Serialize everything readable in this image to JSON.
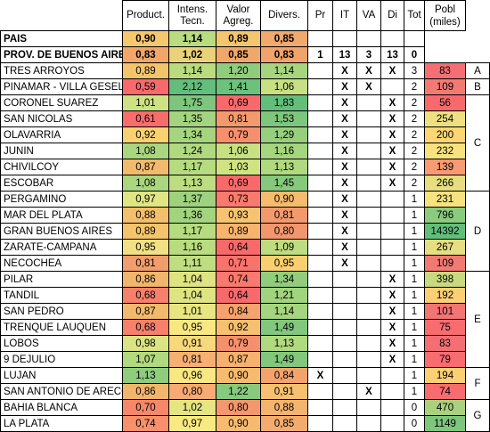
{
  "headers": {
    "productividad": "Product.",
    "intensidad": "Intens. Tecn.",
    "valor": "Valor Agreg.",
    "diversificacion": "Divers.",
    "pr": "Pr",
    "it": "IT",
    "va": "VA",
    "di": "Di",
    "tot": "Tot",
    "poblacion": "Pobl (miles)"
  },
  "summary": [
    {
      "name": "PAIS",
      "p": "0,90",
      "it": "1,14",
      "va": "0,89",
      "d": "0,85",
      "cp": "",
      "cit": "",
      "cva": "",
      "cdi": "",
      "tot": "",
      "bg": [
        "#f5c86e",
        "#b9dc80",
        "#f3c56c",
        "#f1a96c"
      ]
    },
    {
      "name": "PROV. DE BUENOS AIRES",
      "p": "0,83",
      "it": "1,02",
      "va": "0,85",
      "d": "0,83",
      "cp": "1",
      "cit": "13",
      "cva": "3",
      "cdi": "13",
      "tot": "0",
      "bg": [
        "#f2a66a",
        "#ead27a",
        "#f0a86a",
        "#f0a36a"
      ]
    }
  ],
  "rows": [
    {
      "name": "TRES ARROYOS",
      "p": "0,89",
      "it": "1,14",
      "va": "1,20",
      "d": "1,14",
      "pr": "",
      "itx": "X",
      "vax": "X",
      "dix": "X",
      "tot": "3",
      "pob": "83",
      "grp": "A",
      "bg": [
        "#f4c46c",
        "#b9dc80",
        "#8fcc7e",
        "#a6d57f"
      ],
      "pbg": "#f36f73"
    },
    {
      "name": "PINAMAR - VILLA GESELL",
      "p": "0,59",
      "it": "2,12",
      "va": "1,41",
      "d": "1,06",
      "pr": "",
      "itx": "X",
      "vax": "X",
      "dix": "",
      "tot": "2",
      "pob": "109",
      "grp": "B",
      "bg": [
        "#f8696b",
        "#63be7b",
        "#6cc17c",
        "#c6e082"
      ],
      "pbg": "#f37a74"
    },
    {
      "name": "CORONEL SUAREZ",
      "p": "1,01",
      "it": "1,75",
      "va": "0,69",
      "d": "1,83",
      "pr": "",
      "itx": "X",
      "vax": "",
      "dix": "X",
      "tot": "2",
      "pob": "56",
      "grp": "",
      "bg": [
        "#cde283",
        "#7ec67d",
        "#f8696b",
        "#63be7b"
      ],
      "pbg": "#f8696b"
    },
    {
      "name": "SAN NICOLAS",
      "p": "0,61",
      "it": "1,35",
      "va": "0,81",
      "d": "1,53",
      "pr": "",
      "itx": "X",
      "vax": "",
      "dix": "X",
      "tot": "2",
      "pob": "254",
      "grp": "",
      "bg": [
        "#f86d6c",
        "#a4d47f",
        "#f29a6d",
        "#7ec67d"
      ],
      "pbg": "#eee081"
    },
    {
      "name": "OLAVARRIA",
      "p": "0,92",
      "it": "1,34",
      "va": "0,79",
      "d": "1,29",
      "pr": "",
      "itx": "X",
      "vax": "",
      "dix": "X",
      "tot": "2",
      "pob": "200",
      "grp": "C",
      "bg": [
        "#f8d171",
        "#a6d57f",
        "#f4906e",
        "#98cf7e"
      ],
      "pbg": "#fbd673"
    },
    {
      "name": "JUNIN",
      "p": "1,08",
      "it": "1,24",
      "va": "1,06",
      "d": "1,16",
      "pr": "",
      "itx": "X",
      "vax": "",
      "dix": "X",
      "tot": "2",
      "pob": "232",
      "grp": "",
      "bg": [
        "#a9d67f",
        "#b1d980",
        "#c6e082",
        "#a6d57f"
      ],
      "pbg": "#f8e27f"
    },
    {
      "name": "CHIVILCOY",
      "p": "0,87",
      "it": "1,17",
      "va": "1,03",
      "d": "1,13",
      "pr": "",
      "itx": "X",
      "vax": "",
      "dix": "X",
      "tot": "2",
      "pob": "139",
      "grp": "",
      "bg": [
        "#f2ba6c",
        "#b6db80",
        "#d0e383",
        "#b0d980"
      ],
      "pbg": "#f89a73"
    },
    {
      "name": "ESCOBAR",
      "p": "1,08",
      "it": "1,13",
      "va": "0,69",
      "d": "1,45",
      "pr": "",
      "itx": "X",
      "vax": "",
      "dix": "X",
      "tot": "2",
      "pob": "266",
      "grp": "",
      "bg": [
        "#a9d67f",
        "#bcdd81",
        "#f8696b",
        "#86c97d"
      ],
      "pbg": "#e6de81"
    },
    {
      "name": "PERGAMINO",
      "p": "0,97",
      "it": "1,37",
      "va": "0,73",
      "d": "0,90",
      "pr": "",
      "itx": "X",
      "vax": "",
      "dix": "",
      "tot": "1",
      "pob": "231",
      "grp": "",
      "bg": [
        "#e1e583",
        "#9fd27f",
        "#f8796d",
        "#f6bb6f"
      ],
      "pbg": "#f8e27f"
    },
    {
      "name": "MAR DEL PLATA",
      "p": "0,88",
      "it": "1,36",
      "va": "0,93",
      "d": "0,81",
      "pr": "",
      "itx": "X",
      "vax": "",
      "dix": "",
      "tot": "1",
      "pob": "796",
      "grp": "",
      "bg": [
        "#f3bf6c",
        "#a2d37f",
        "#f6c470",
        "#f29a6d"
      ],
      "pbg": "#8bcb7e"
    },
    {
      "name": "GRAN BUENOS AIRES",
      "p": "0,89",
      "it": "1,17",
      "va": "0,89",
      "d": "0,80",
      "pr": "",
      "itx": "X",
      "vax": "",
      "dix": "",
      "tot": "1",
      "pob": "14392",
      "grp": "D",
      "bg": [
        "#f4c46c",
        "#b6db80",
        "#f6b46f",
        "#f2976d"
      ],
      "pbg": "#63be7b"
    },
    {
      "name": "ZARATE-CAMPANA",
      "p": "0,95",
      "it": "1,16",
      "va": "0,64",
      "d": "1,09",
      "pr": "",
      "itx": "X",
      "vax": "",
      "dix": "",
      "tot": "1",
      "pob": "267",
      "grp": "",
      "bg": [
        "#f2e084",
        "#b9dc80",
        "#f8696b",
        "#bedd81"
      ],
      "pbg": "#e6de81"
    },
    {
      "name": "NECOCHEA",
      "p": "0,81",
      "it": "1,11",
      "va": "0,71",
      "d": "0,95",
      "pr": "",
      "itx": "X",
      "vax": "",
      "dix": "",
      "tot": "1",
      "pob": "109",
      "grp": "",
      "bg": [
        "#f29e6c",
        "#c0de81",
        "#f8736c",
        "#f8d071"
      ],
      "pbg": "#f37a74"
    },
    {
      "name": "PILAR",
      "p": "0,86",
      "it": "1,04",
      "va": "0,74",
      "d": "1,34",
      "pr": "",
      "itx": "",
      "vax": "",
      "dix": "X",
      "tot": "1",
      "pob": "398",
      "grp": "",
      "bg": [
        "#f2b56c",
        "#dfe483",
        "#f8796d",
        "#92cd7e"
      ],
      "pbg": "#c9d97f"
    },
    {
      "name": "TANDIL",
      "p": "0,68",
      "it": "1,04",
      "va": "0,64",
      "d": "1,21",
      "pr": "",
      "itx": "",
      "vax": "",
      "dix": "X",
      "tot": "1",
      "pob": "192",
      "grp": "",
      "bg": [
        "#f6806b",
        "#dfe483",
        "#f8696b",
        "#a2d37f"
      ],
      "pbg": "#fbcf73"
    },
    {
      "name": "SAN PEDRO",
      "p": "0,87",
      "it": "1,01",
      "va": "0,84",
      "d": "1,14",
      "pr": "",
      "itx": "",
      "vax": "",
      "dix": "X",
      "tot": "1",
      "pob": "101",
      "grp": "E",
      "bg": [
        "#f2ba6c",
        "#e8e683",
        "#f5a26e",
        "#a6d57f"
      ],
      "pbg": "#f37474"
    },
    {
      "name": "TRENQUE LAUQUEN",
      "p": "0,68",
      "it": "0,95",
      "va": "0,92",
      "d": "1,49",
      "pr": "",
      "itx": "",
      "vax": "",
      "dix": "X",
      "tot": "1",
      "pob": "75",
      "grp": "",
      "bg": [
        "#f6806b",
        "#f8e883",
        "#f6c070",
        "#82c77d"
      ],
      "pbg": "#f86c70"
    },
    {
      "name": "LOBOS",
      "p": "0,98",
      "it": "0,91",
      "va": "0,79",
      "d": "1,13",
      "pr": "",
      "itx": "",
      "vax": "",
      "dix": "X",
      "tot": "1",
      "pob": "83",
      "grp": "",
      "bg": [
        "#dbe483",
        "#f8d87e",
        "#f4906e",
        "#b0d980"
      ],
      "pbg": "#f36f73"
    },
    {
      "name": "9 DEJULIO",
      "p": "1,07",
      "it": "0,81",
      "va": "0,87",
      "d": "1,49",
      "pr": "",
      "itx": "",
      "vax": "",
      "dix": "X",
      "tot": "1",
      "pob": "79",
      "grp": "",
      "bg": [
        "#b1d980",
        "#f7b074",
        "#f6b06f",
        "#82c77d"
      ],
      "pbg": "#f86c70"
    },
    {
      "name": "LUJAN",
      "p": "1,13",
      "it": "0,96",
      "va": "0,90",
      "d": "0,84",
      "pr": "X",
      "itx": "",
      "vax": "",
      "dix": "",
      "tot": "1",
      "pob": "194",
      "grp": "F",
      "bg": [
        "#8fcc7e",
        "#f8e783",
        "#f6bb6f",
        "#f4a36d"
      ],
      "pbg": "#fbcf73"
    },
    {
      "name": "SAN ANTONIO DE ARECO",
      "p": "0,86",
      "it": "0,80",
      "va": "1,22",
      "d": "0,91",
      "pr": "",
      "itx": "",
      "vax": "X",
      "dix": "",
      "tot": "1",
      "pob": "74",
      "grp": "",
      "bg": [
        "#f2b56c",
        "#f7aa73",
        "#87c97d",
        "#f6c070"
      ],
      "pbg": "#f86c70"
    },
    {
      "name": "BAHIA BLANCA",
      "p": "0,70",
      "it": "1,02",
      "va": "0,80",
      "d": "0,88",
      "pr": "",
      "itx": "",
      "vax": "",
      "dix": "",
      "tot": "0",
      "pob": "470",
      "grp": "G",
      "bg": [
        "#f7876b",
        "#e5e583",
        "#f4966e",
        "#f4b36f"
      ],
      "pbg": "#a9d17e"
    },
    {
      "name": "LA PLATA",
      "p": "0,74",
      "it": "0,97",
      "va": "0,90",
      "d": "0,85",
      "pr": "",
      "itx": "",
      "vax": "",
      "dix": "",
      "tot": "0",
      "pob": "1149",
      "grp": "",
      "bg": [
        "#f8906b",
        "#f8e983",
        "#f6bb6f",
        "#f4ac6e"
      ],
      "pbg": "#7ec67d"
    }
  ]
}
